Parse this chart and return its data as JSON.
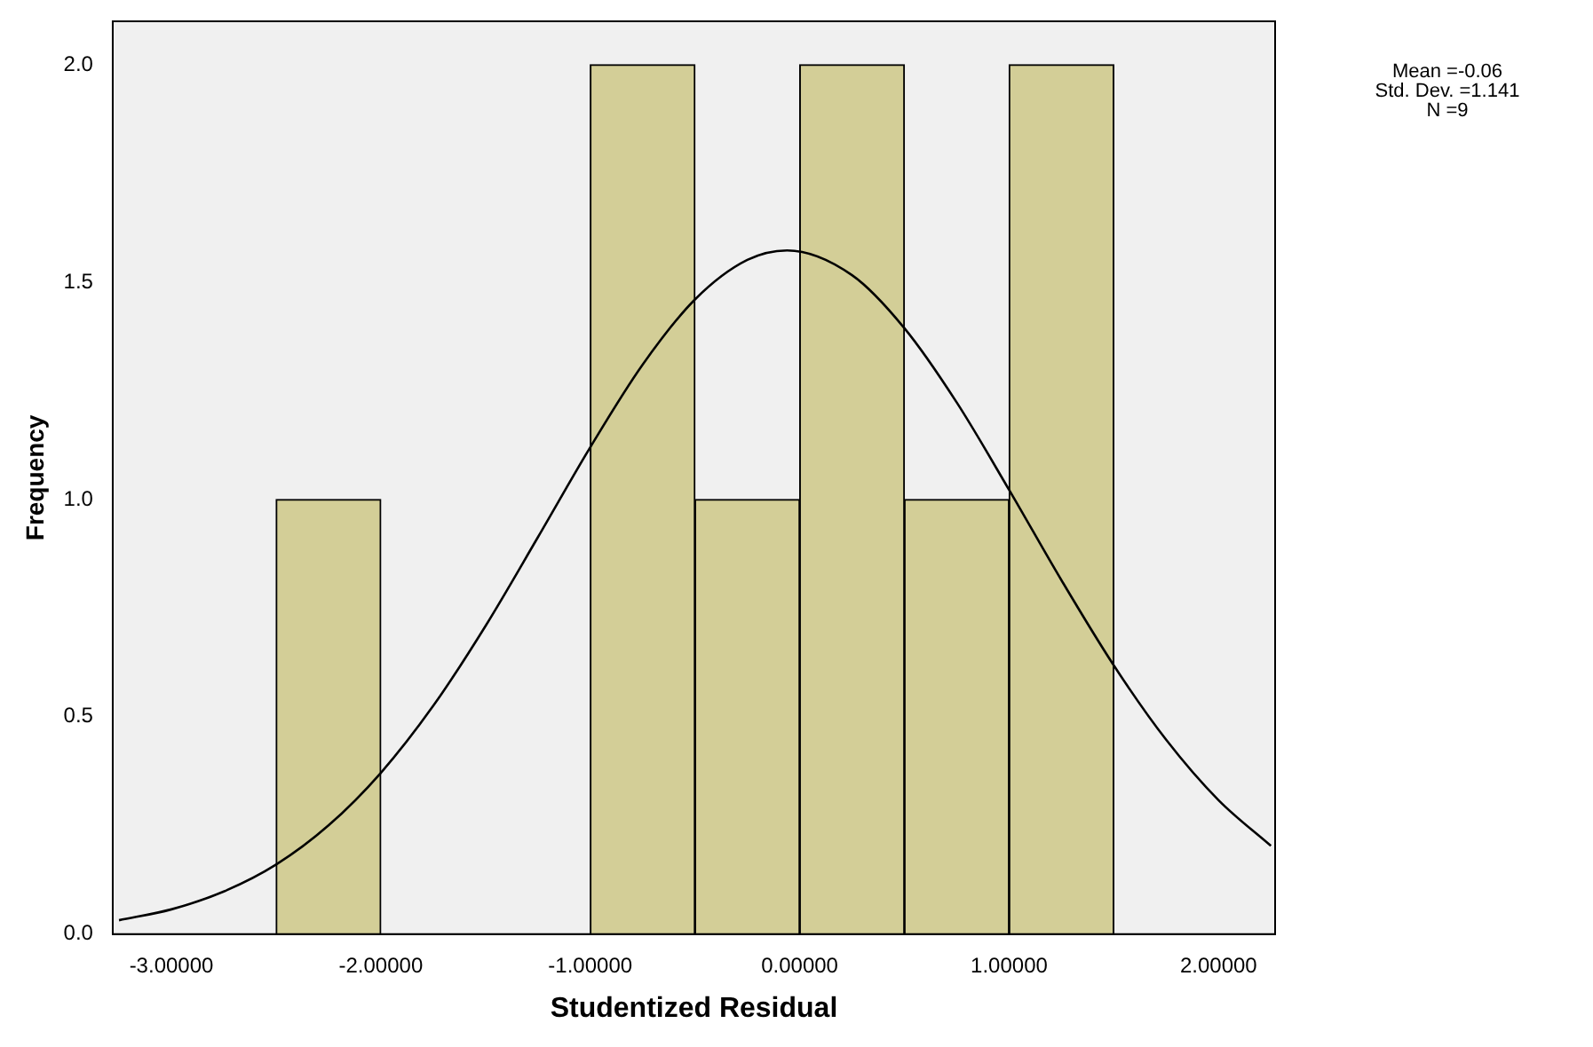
{
  "chart_data": {
    "type": "histogram",
    "xlabel": "Studentized Residual",
    "ylabel": "Frequency",
    "bins": [
      -2.5,
      -2,
      -1.5,
      -1,
      -0.5,
      0,
      0.5,
      1,
      1.5
    ],
    "values": [
      1,
      0,
      0,
      2,
      1,
      2,
      1,
      2
    ],
    "color": "#d3ce97",
    "series": [
      {
        "type": "line",
        "color": "#000000",
        "x": [
          -3.25,
          -3,
          -2.75,
          -2.5,
          -2.25,
          -2,
          -1.75,
          -1.5,
          -1.25,
          -1,
          -0.75,
          -0.5,
          -0.25,
          -0.06,
          0.25,
          0.5,
          0.75,
          1,
          1.25,
          1.5,
          1.75,
          2,
          2.25
        ],
        "values": [
          0.032,
          0.057,
          0.098,
          0.16,
          0.25,
          0.371,
          0.525,
          0.709,
          0.913,
          1.12,
          1.31,
          1.46,
          1.551,
          1.573,
          1.516,
          1.394,
          1.223,
          1.022,
          0.814,
          0.618,
          0.447,
          0.308,
          0.203
        ]
      }
    ],
    "xlim": [
      -3.28,
      2.27
    ],
    "ylim": [
      0,
      2.1
    ],
    "xticks": [
      {
        "value": -3,
        "label": "-3.00000"
      },
      {
        "value": -2,
        "label": "-2.00000"
      },
      {
        "value": -1,
        "label": "-1.00000"
      },
      {
        "value": 0,
        "label": "0.00000"
      },
      {
        "value": 1,
        "label": "1.00000"
      },
      {
        "value": 2,
        "label": "2.00000"
      }
    ],
    "yticks": [
      {
        "value": 0,
        "label": "0.0"
      },
      {
        "value": 0.5,
        "label": "0.5"
      },
      {
        "value": 1,
        "label": "1.0"
      },
      {
        "value": 1.5,
        "label": "1.5"
      },
      {
        "value": 2,
        "label": "2.0"
      }
    ],
    "annotations": [
      "Mean =-0.06",
      "Std. Dev. =1.141",
      "N =9"
    ]
  }
}
